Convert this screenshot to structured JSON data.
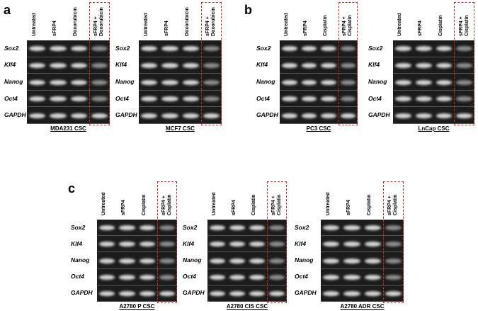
{
  "panels": [
    {
      "letter": "a",
      "gels": [
        {
          "columns": [
            "Untreated",
            "sFRP4",
            "Doxorubicin",
            "sFRP4 + Doxorubicin"
          ],
          "rows": [
            "Sox2",
            "Klf4",
            "Nanog",
            "Oct4",
            "GAPDH"
          ],
          "caption": "MDA231 CSC"
        },
        {
          "columns": [
            "Untreated",
            "sFRP4",
            "Doxorubicin",
            "sFRP4 + Doxorubicin"
          ],
          "rows": [
            "Sox2",
            "Klf4",
            "Nanog",
            "Oct4",
            "GAPDH"
          ],
          "caption": "MCF7 CSC"
        }
      ]
    },
    {
      "letter": "b",
      "gels": [
        {
          "columns": [
            "Untreated",
            "sFRP4",
            "Cisplatin",
            "sFRP4 + Cisplatin"
          ],
          "rows": [
            "Sox2",
            "Klf4",
            "Nanog",
            "Oct4",
            "GAPDH"
          ],
          "caption": "PC3 CSC"
        },
        {
          "columns": [
            "Untreated",
            "sFRP4",
            "Cisplatin",
            "sFRP4 + Cisplatin"
          ],
          "rows": [
            "Sox2",
            "Klf4",
            "Nanog",
            "Oct4",
            "GAPDH"
          ],
          "caption": "LnCap CSC"
        }
      ]
    },
    {
      "letter": "c",
      "gels": [
        {
          "columns": [
            "Untreated",
            "sFRP4",
            "Cisplatin",
            "sFRP4 + Cisplatin"
          ],
          "rows": [
            "Sox2",
            "Klf4",
            "Nanog",
            "Oct4",
            "GAPDH"
          ],
          "caption": "A2780 P CSC"
        },
        {
          "columns": [
            "Untreated",
            "sFRP4",
            "Cisplatin",
            "sFRP4 + Cisplatin"
          ],
          "rows": [
            "Sox2",
            "Klf4",
            "Nanog",
            "Oct4",
            "GAPDH"
          ],
          "caption": "A2780 CIS CSC"
        },
        {
          "columns": [
            "Untreated",
            "sFRP4",
            "Cisplatin",
            "sFRP4 + Cisplatin"
          ],
          "rows": [
            "Sox2",
            "Klf4",
            "Nanog",
            "Oct4",
            "GAPDH"
          ],
          "caption": "A2780 ADR CSC"
        }
      ]
    }
  ]
}
